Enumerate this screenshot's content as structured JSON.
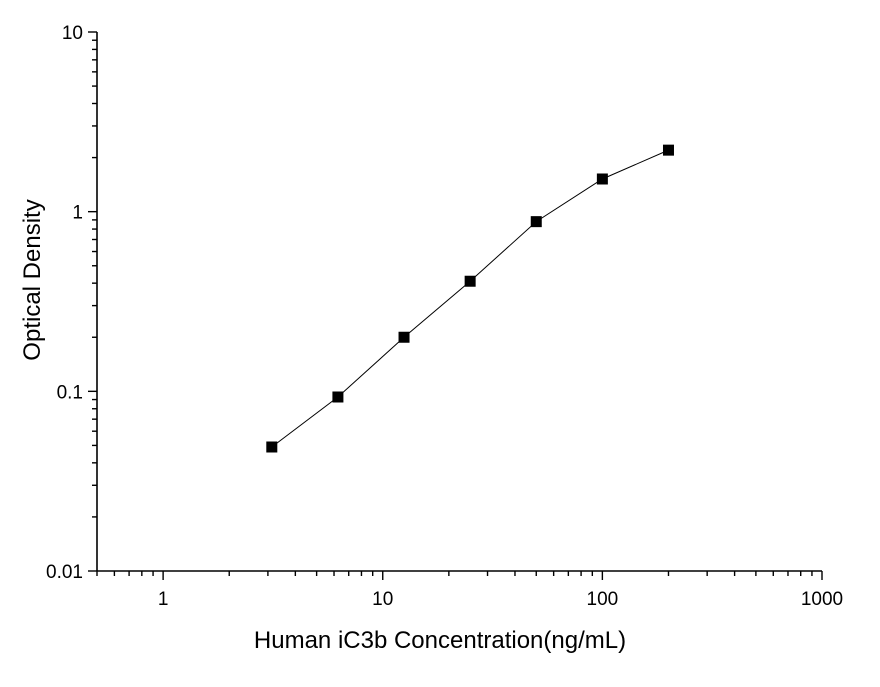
{
  "chart_data": {
    "type": "line",
    "title": "",
    "xlabel": "Human iC3b Concentration(ng/mL)",
    "ylabel": "Optical  Density",
    "x_scale": "log",
    "y_scale": "log",
    "xlim": [
      0.5,
      1000
    ],
    "ylim": [
      0.01,
      10
    ],
    "x_ticks": [
      {
        "value": 1,
        "label": "1"
      },
      {
        "value": 10,
        "label": "10"
      },
      {
        "value": 100,
        "label": "100"
      },
      {
        "value": 1000,
        "label": "1000"
      }
    ],
    "y_ticks": [
      {
        "value": 0.01,
        "label": "0.01"
      },
      {
        "value": 0.1,
        "label": "0.1"
      },
      {
        "value": 1,
        "label": "1"
      },
      {
        "value": 10,
        "label": "10"
      }
    ],
    "grid": false,
    "legend": "none",
    "marker": "square",
    "color": "#000000",
    "series": [
      {
        "x": [
          3.125,
          6.25,
          12.5,
          25,
          50,
          100,
          200
        ],
        "y": [
          0.049,
          0.093,
          0.2,
          0.41,
          0.88,
          1.52,
          2.2
        ]
      }
    ]
  }
}
